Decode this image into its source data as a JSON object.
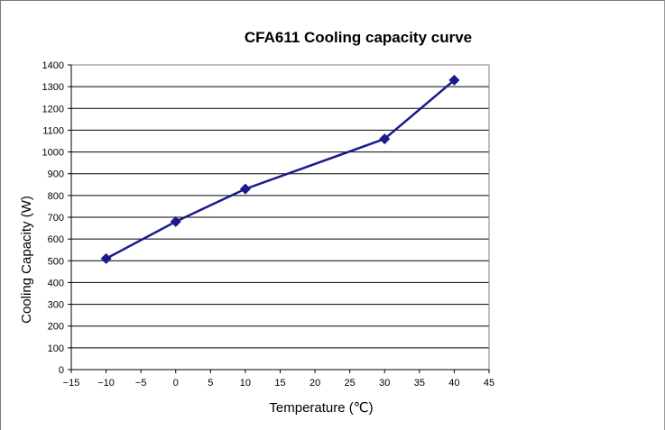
{
  "chart_data": {
    "type": "scatter",
    "title": "CFA611 Cooling capacity curve",
    "xlabel": "Temperature (℃)",
    "ylabel": "Cooling Capacity (W)",
    "xlim": [
      -15,
      45
    ],
    "ylim": [
      0,
      1400
    ],
    "x_ticks": [
      "−15",
      "−10",
      "−5",
      "0",
      "5",
      "10",
      "15",
      "20",
      "25",
      "30",
      "35",
      "40",
      "45"
    ],
    "y_ticks": [
      "0",
      "100",
      "200",
      "300",
      "400",
      "500",
      "600",
      "700",
      "800",
      "900",
      "1000",
      "1100",
      "1200",
      "1300",
      "1400"
    ],
    "grid": "horizontal",
    "legend": "none",
    "line_color": "#1a1a8c",
    "series": [
      {
        "x": [
          -10,
          0,
          10,
          30,
          40
        ],
        "y": [
          510,
          680,
          830,
          1060,
          1330
        ]
      }
    ]
  }
}
